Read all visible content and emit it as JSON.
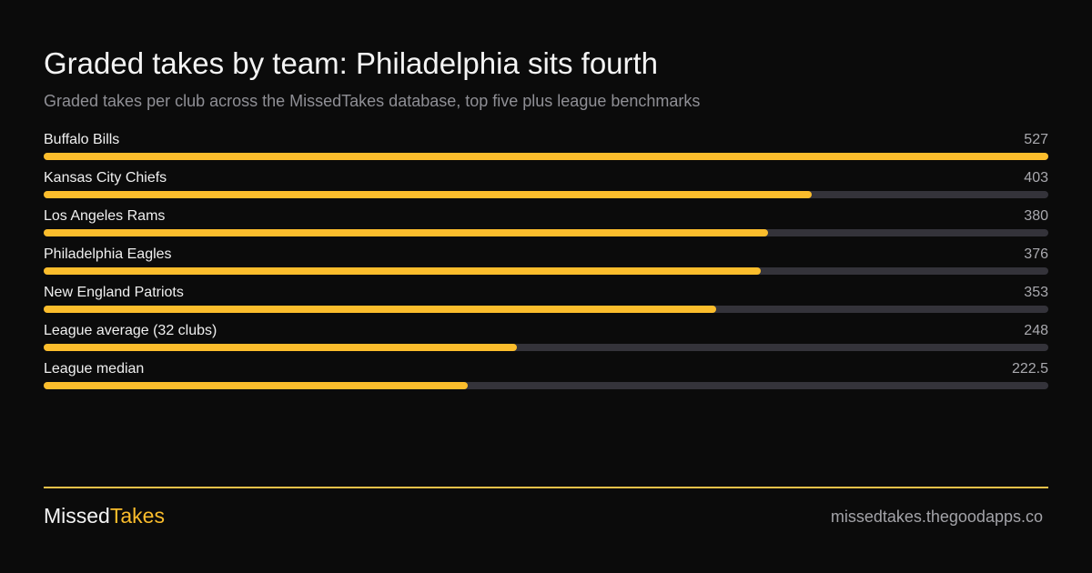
{
  "header": {
    "title": "Graded takes by team: Philadelphia sits fourth",
    "subtitle": "Graded takes per club across the MissedTakes  database, top five plus league benchmarks"
  },
  "chart_data": {
    "type": "bar",
    "orientation": "horizontal",
    "title": "Graded takes by team: Philadelphia sits fourth",
    "subtitle": "Graded takes per club across the MissedTakes  database, top five plus league benchmarks",
    "categories": [
      "Buffalo Bills",
      "Kansas City Chiefs",
      "Los Angeles Rams",
      "Philadelphia Eagles",
      "New England Patriots",
      "League average (32 clubs)",
      "League median"
    ],
    "values": [
      527,
      403,
      380,
      376,
      353,
      248,
      222.5
    ],
    "value_labels": [
      "527",
      "403",
      "380",
      "376",
      "353",
      "248",
      "222.5"
    ],
    "xlim": [
      0,
      527
    ],
    "grid": false,
    "legend": "none",
    "bar_color": "#fbbd2c",
    "track_color": "#34333a"
  },
  "footer": {
    "brand_part1": "Missed",
    "brand_part2": "Takes",
    "brand_part2_color": "#fbbd2c",
    "site": "missedtakes.thegoodapps.co",
    "rule_color": "#f0c24a"
  }
}
